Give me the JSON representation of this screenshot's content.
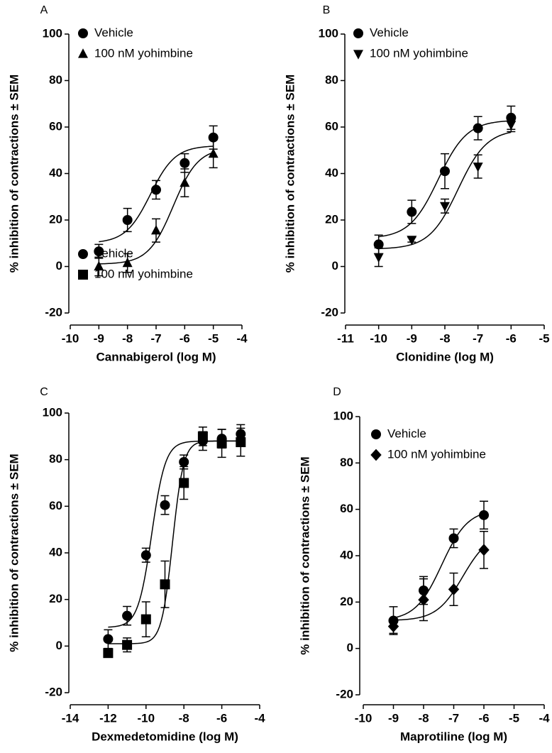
{
  "chart_data": [
    {
      "type": "scatter",
      "panel_label": "A",
      "xlabel": "Cannabigerol (log M)",
      "ylabel": "% inhibition of contractions ± SEM",
      "xlim": [
        -10,
        -4
      ],
      "xticks": [
        -10,
        -9,
        -8,
        -7,
        -6,
        -5,
        -4
      ],
      "ylim": [
        -20,
        100
      ],
      "yticks": [
        -20,
        0,
        20,
        40,
        60,
        80,
        100
      ],
      "series": [
        {
          "name": "Vehicle",
          "color": "#000000",
          "marker": "circle",
          "x": [
            -9,
            -8,
            -7,
            -6,
            -5
          ],
          "values": [
            6.5,
            20,
            33,
            44.5,
            55.5
          ],
          "errors": [
            3,
            5,
            4,
            4,
            5
          ],
          "curve": {
            "bottom": 10,
            "top": 52,
            "log_ec50": -7.2,
            "hill": 1
          }
        },
        {
          "name": "100 nM yohimbine",
          "color": "#000000",
          "marker": "triangle-up",
          "x": [
            -9,
            -8,
            -7,
            -6,
            -5
          ],
          "values": [
            0,
            1.5,
            15.5,
            36,
            48.5
          ],
          "errors": [
            4,
            4,
            5,
            6,
            6
          ],
          "curve": {
            "bottom": 1,
            "top": 51,
            "log_ec50": -6.4,
            "hill": 1
          }
        }
      ]
    },
    {
      "type": "scatter",
      "panel_label": "B",
      "xlabel": "Clonidine (log M)",
      "ylabel": "% inhibition of contractions ± SEM",
      "xlim": [
        -11,
        -5
      ],
      "xticks": [
        -11,
        -10,
        -9,
        -8,
        -7,
        -6,
        -5
      ],
      "ylim": [
        -20,
        100
      ],
      "yticks": [
        -20,
        0,
        20,
        40,
        60,
        80,
        100
      ],
      "series": [
        {
          "name": "Vehicle",
          "color": "#000000",
          "marker": "circle",
          "x": [
            -10,
            -9,
            -8,
            -7,
            -6
          ],
          "values": [
            9.5,
            23.5,
            41,
            59.5,
            64
          ],
          "errors": [
            4,
            5,
            7.5,
            5,
            5
          ],
          "curve": {
            "bottom": 12,
            "top": 63,
            "log_ec50": -8.2,
            "hill": 1
          }
        },
        {
          "name": "100 nM yohimbine",
          "color": "#000000",
          "marker": "triangle-down",
          "x": [
            -10,
            -9,
            -8,
            -7,
            -6
          ],
          "values": [
            4,
            11.5,
            26,
            43,
            61
          ],
          "errors": [
            4,
            1,
            3,
            5,
            3
          ],
          "curve": {
            "bottom": 7.5,
            "top": 59,
            "log_ec50": -7.6,
            "hill": 1
          }
        }
      ]
    },
    {
      "type": "scatter",
      "panel_label": "C",
      "xlabel": "Dexmedetomidine (log M)",
      "ylabel": "% inhibition of contractions ± SEM",
      "xlim": [
        -14,
        -4
      ],
      "xticks": [
        -14,
        -12,
        -10,
        -8,
        -6,
        -4
      ],
      "ylim": [
        -20,
        100
      ],
      "yticks": [
        -20,
        0,
        20,
        40,
        60,
        80,
        100
      ],
      "series": [
        {
          "name": "Vehicle",
          "color": "#000000",
          "marker": "circle",
          "x": [
            -12,
            -11,
            -10,
            -9,
            -8,
            -7,
            -6,
            -5
          ],
          "values": [
            3,
            13,
            39,
            60.5,
            79,
            88,
            89,
            91
          ],
          "errors": [
            4,
            4,
            3,
            4,
            3,
            4,
            4,
            4
          ],
          "curve": {
            "bottom": 8,
            "top": 88,
            "log_ec50": -9.7,
            "hill": 1.2
          }
        },
        {
          "name": "100 nM yohimbine",
          "color": "#000000",
          "marker": "square",
          "x": [
            -12,
            -11,
            -10,
            -9,
            -8,
            -7,
            -6,
            -5
          ],
          "values": [
            -3,
            0.5,
            11.5,
            26.5,
            70,
            90,
            87,
            87.5
          ],
          "errors": [
            0,
            3,
            7.5,
            10,
            7,
            4,
            6,
            6
          ],
          "curve": {
            "bottom": 1,
            "top": 88,
            "log_ec50": -8.6,
            "hill": 1.5
          }
        }
      ]
    },
    {
      "type": "scatter",
      "panel_label": "D",
      "xlabel": "Maprotiline (log M)",
      "ylabel": "% inhibition of contractions ± SEM",
      "xlim": [
        -10,
        -4
      ],
      "xticks": [
        -10,
        -9,
        -8,
        -7,
        -6,
        -5,
        -4
      ],
      "ylim": [
        -20,
        100
      ],
      "yticks": [
        -20,
        0,
        20,
        40,
        60,
        80,
        100
      ],
      "series": [
        {
          "name": "Vehicle",
          "color": "#000000",
          "marker": "circle",
          "x": [
            -9,
            -8,
            -7,
            -6
          ],
          "values": [
            12,
            25,
            47.5,
            57.5
          ],
          "errors": [
            6,
            6,
            4,
            6
          ],
          "curve": {
            "bottom": 12,
            "top": 60,
            "log_ec50": -7.4,
            "hill": 1
          }
        },
        {
          "name": "100 nM yohimbine",
          "color": "#000000",
          "marker": "diamond",
          "x": [
            -9,
            -8,
            -7,
            -6
          ],
          "values": [
            9.5,
            21,
            25.5,
            42.5
          ],
          "errors": [
            3,
            9,
            7,
            8
          ],
          "curve": {
            "bottom": 12,
            "top": 50,
            "log_ec50": -6.7,
            "hill": 1
          }
        }
      ]
    }
  ]
}
